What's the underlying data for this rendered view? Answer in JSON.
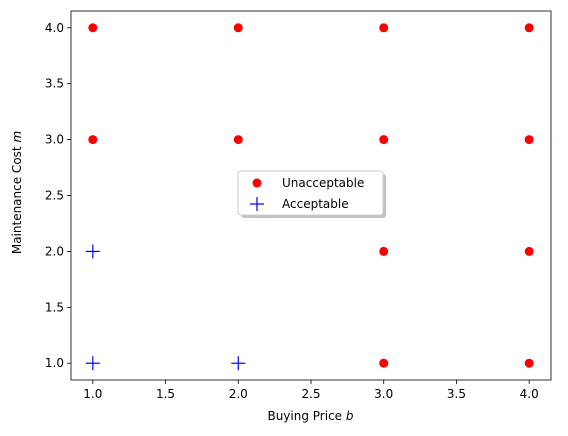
{
  "chart_data": {
    "type": "scatter",
    "xlabel": "Buying Price",
    "xlabel_var": "b",
    "ylabel": "Maintenance Cost",
    "ylabel_var": "m",
    "xlim": [
      0.85,
      4.15
    ],
    "ylim": [
      0.85,
      4.15
    ],
    "xticks": [
      "1.0",
      "1.5",
      "2.0",
      "2.5",
      "3.0",
      "3.5",
      "4.0"
    ],
    "yticks": [
      "1.0",
      "1.5",
      "2.0",
      "2.5",
      "3.0",
      "3.5",
      "4.0"
    ],
    "grid": false,
    "legend_position": "center",
    "series": [
      {
        "name": "Unacceptable",
        "marker": "circle",
        "color": "#ff0000",
        "x": [
          1,
          2,
          3,
          4,
          1,
          2,
          3,
          4,
          3,
          4,
          3,
          4
        ],
        "y": [
          4,
          4,
          4,
          4,
          3,
          3,
          3,
          3,
          2,
          2,
          1,
          1
        ]
      },
      {
        "name": "Acceptable",
        "marker": "plus",
        "color": "#0000ff",
        "x": [
          1,
          1,
          2
        ],
        "y": [
          2,
          1,
          1
        ]
      }
    ]
  }
}
